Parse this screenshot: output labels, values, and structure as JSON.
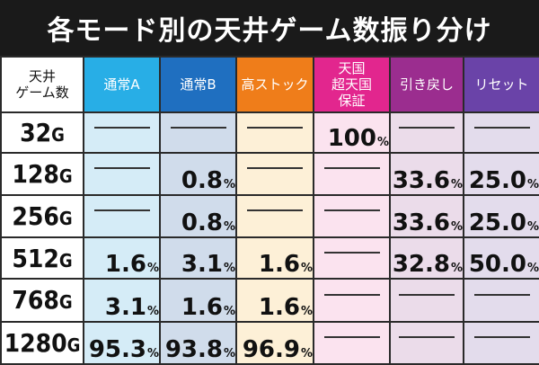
{
  "title": "各モード別の天井ゲーム数振り分け",
  "corner_header": [
    "天井",
    "ゲーム数"
  ],
  "columns": [
    {
      "label": [
        "通常A"
      ],
      "header_color": "#28aee6",
      "cell_color": "#d5ecf7"
    },
    {
      "label": [
        "通常B"
      ],
      "header_color": "#1f6fc0",
      "cell_color": "#d0dceb"
    },
    {
      "label": [
        "高ストック"
      ],
      "header_color": "#ef7d1a",
      "cell_color": "#fdf0d7"
    },
    {
      "label": [
        "天国",
        "超天国",
        "保証"
      ],
      "header_color": "#e2268e",
      "cell_color": "#fbe3ef"
    },
    {
      "label": [
        "引き戻し"
      ],
      "header_color": "#9b2d8f",
      "cell_color": "#ebdcea"
    },
    {
      "label": [
        "リセット"
      ],
      "header_color": "#6a43a8",
      "cell_color": "#e3dcec"
    }
  ],
  "percent_unit": "%",
  "rows": [
    {
      "games": "32",
      "unit": "G",
      "cells": [
        "",
        "",
        "",
        "100",
        "",
        ""
      ]
    },
    {
      "games": "128",
      "unit": "G",
      "cells": [
        "",
        "0.8",
        "",
        "",
        "33.6",
        "25.0"
      ]
    },
    {
      "games": "256",
      "unit": "G",
      "cells": [
        "",
        "0.8",
        "",
        "",
        "33.6",
        "25.0"
      ]
    },
    {
      "games": "512",
      "unit": "G",
      "cells": [
        "1.6",
        "3.1",
        "1.6",
        "",
        "32.8",
        "50.0"
      ]
    },
    {
      "games": "768",
      "unit": "G",
      "cells": [
        "3.1",
        "1.6",
        "1.6",
        "",
        "",
        ""
      ]
    },
    {
      "games": "1280",
      "unit": "G",
      "cells": [
        "95.3",
        "93.8",
        "96.9",
        "",
        "",
        ""
      ]
    }
  ]
}
